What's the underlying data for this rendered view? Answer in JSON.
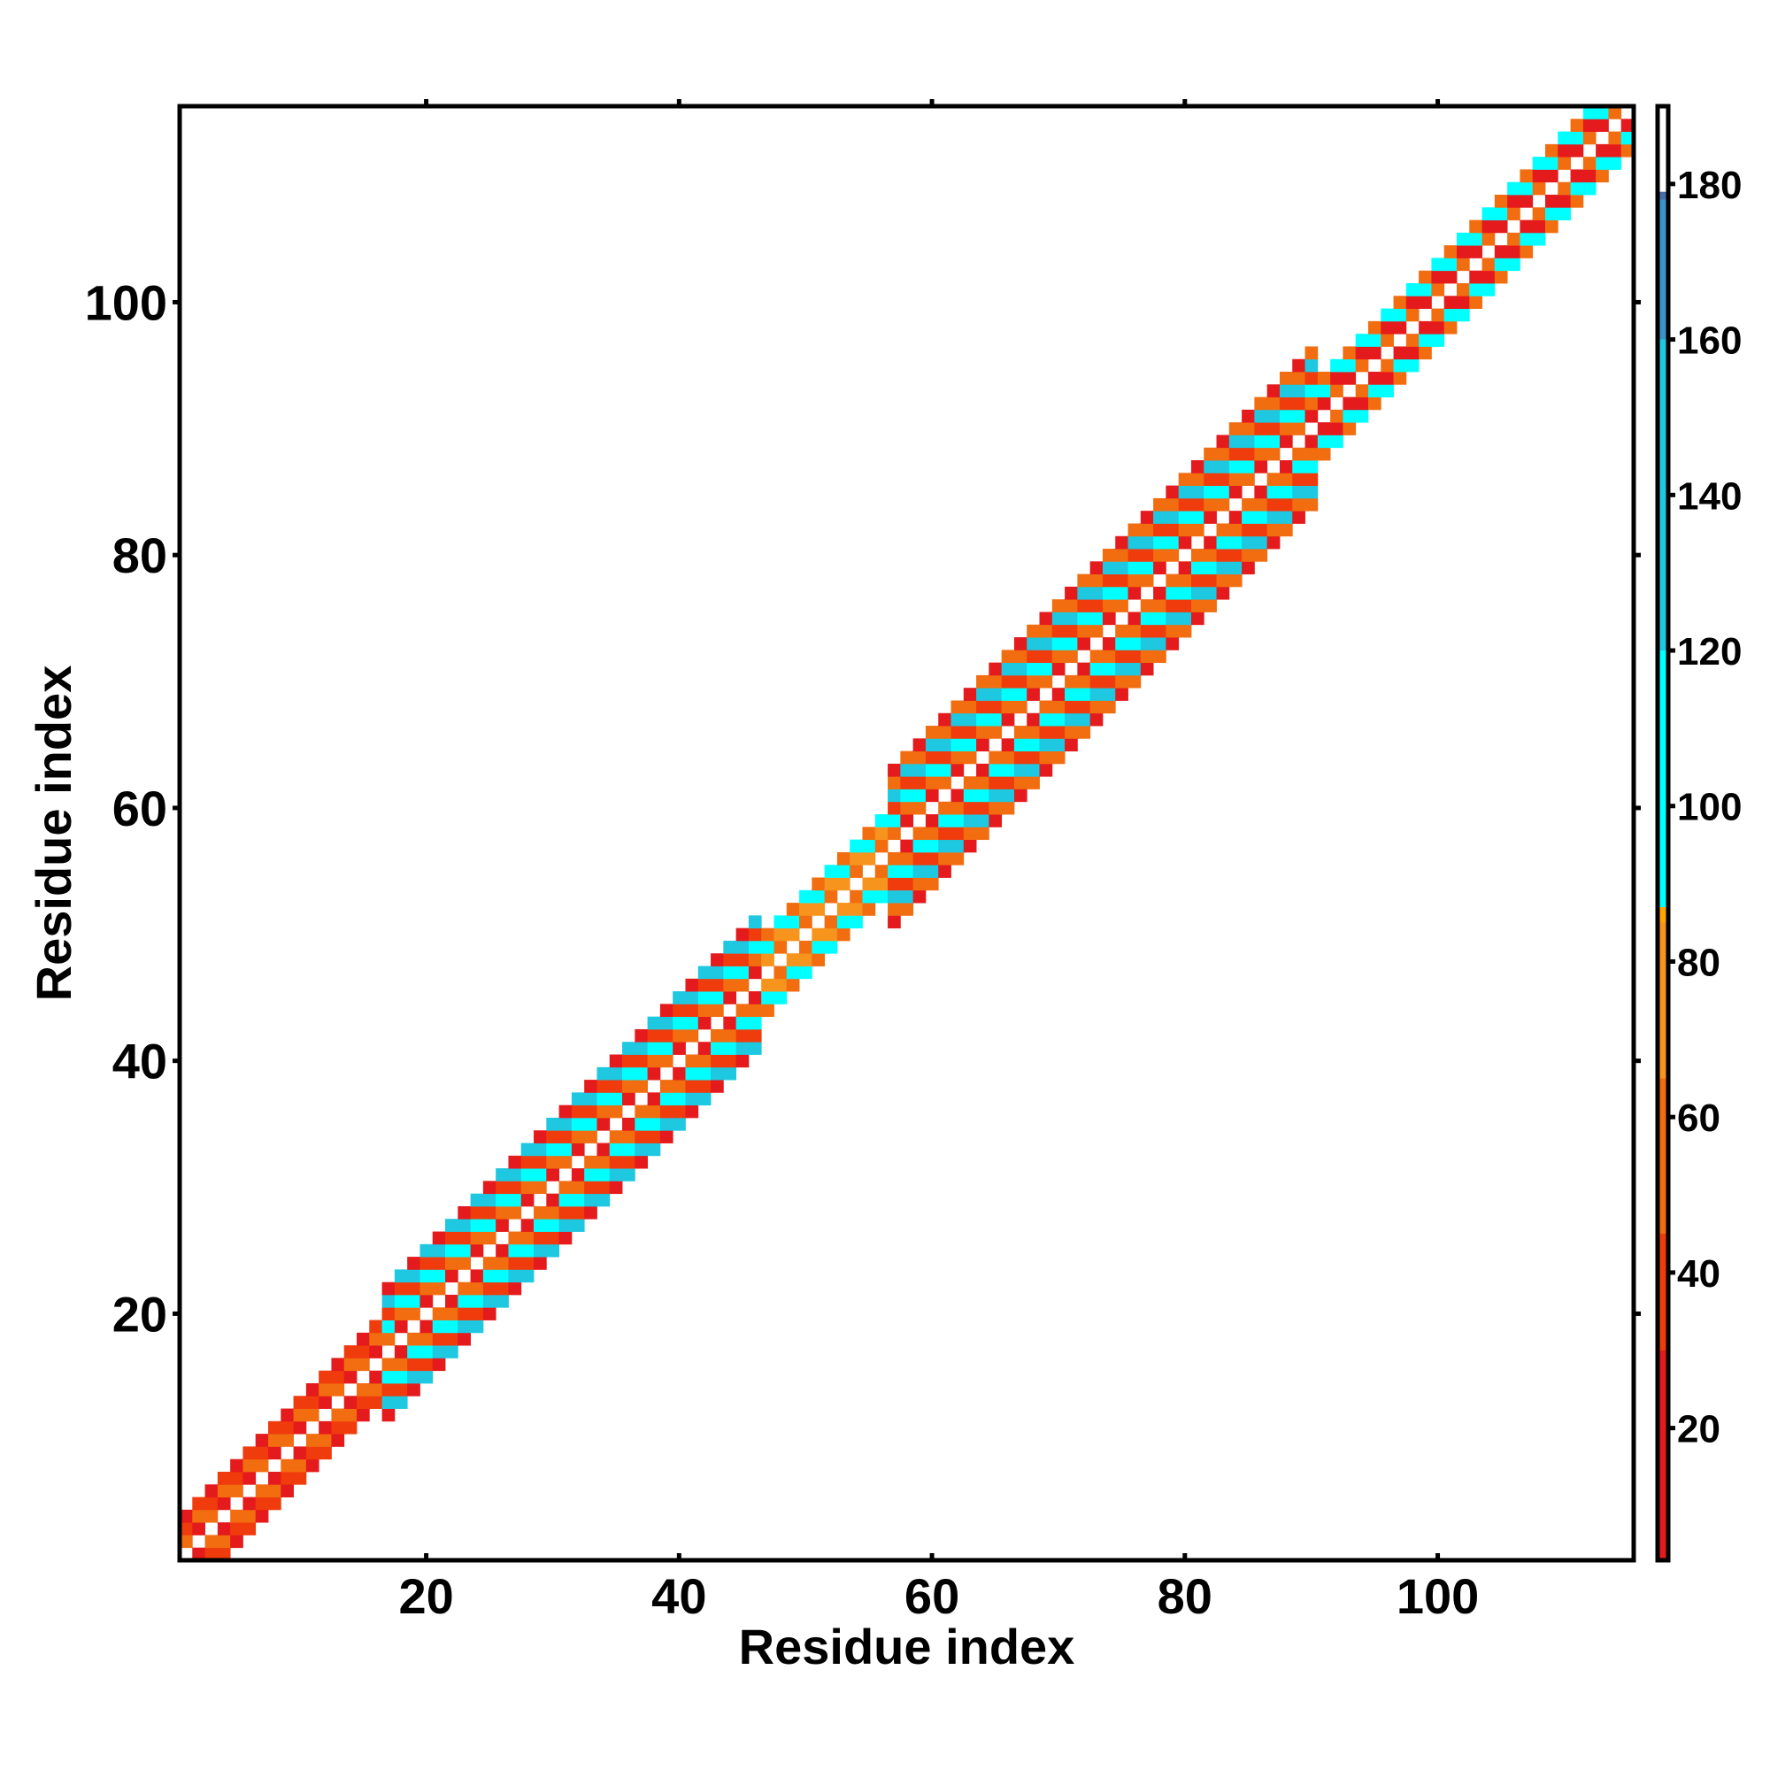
{
  "chart_data": {
    "type": "heatmap",
    "title": "",
    "xlabel": "Residue index",
    "ylabel": "Residue index",
    "xlim": [
      0.5,
      115.5
    ],
    "ylim": [
      0.5,
      115.5
    ],
    "x_ticks": [
      "20",
      "40",
      "60",
      "80",
      "100"
    ],
    "y_ticks": [
      "20",
      "40",
      "60",
      "80",
      "100"
    ],
    "x_tick_values": [
      20,
      40,
      60,
      80,
      100
    ],
    "y_tick_values": [
      20,
      40,
      60,
      80,
      100
    ],
    "colorbar": {
      "range": [
        3,
        190
      ],
      "ticks": [
        "20",
        "40",
        "60",
        "80",
        "100",
        "120",
        "140",
        "160",
        "180"
      ],
      "tick_values": [
        20,
        40,
        60,
        80,
        100,
        120,
        140,
        160,
        180
      ],
      "stops": [
        {
          "value": 3,
          "color": "#e41a1c"
        },
        {
          "value": 30,
          "color": "#f03b0c"
        },
        {
          "value": 45,
          "color": "#f26d10"
        },
        {
          "value": 65,
          "color": "#f7941d"
        },
        {
          "value": 85,
          "color": "#ffa500"
        },
        {
          "value": 87,
          "color": "#00ffff"
        },
        {
          "value": 120,
          "color": "#1ec8e0"
        },
        {
          "value": 160,
          "color": "#3b93c8"
        },
        {
          "value": 178,
          "color": "#4a6fa8"
        },
        {
          "value": 179,
          "color": "#ffffff"
        },
        {
          "value": 190,
          "color": "#ffffff"
        }
      ]
    },
    "band": {
      "description_free": true,
      "segments": [
        {
          "from": 1,
          "to": 16,
          "half_width": 3,
          "value_pattern": [
            0,
            20,
            55,
            30
          ]
        },
        {
          "from": 17,
          "to": 46,
          "half_width": 5,
          "value_pattern": [
            0,
            20,
            55,
            110,
            30,
            120
          ]
        },
        {
          "from": 47,
          "to": 56,
          "half_width": 3,
          "value_pattern": [
            0,
            55,
            75,
            110
          ]
        },
        {
          "from": 57,
          "to": 90,
          "half_width": 6,
          "value_pattern": [
            0,
            20,
            55,
            115,
            30,
            120,
            60
          ]
        },
        {
          "from": 91,
          "to": 115,
          "half_width": 3,
          "value_pattern": [
            0,
            55,
            20,
            110
          ]
        }
      ]
    }
  }
}
